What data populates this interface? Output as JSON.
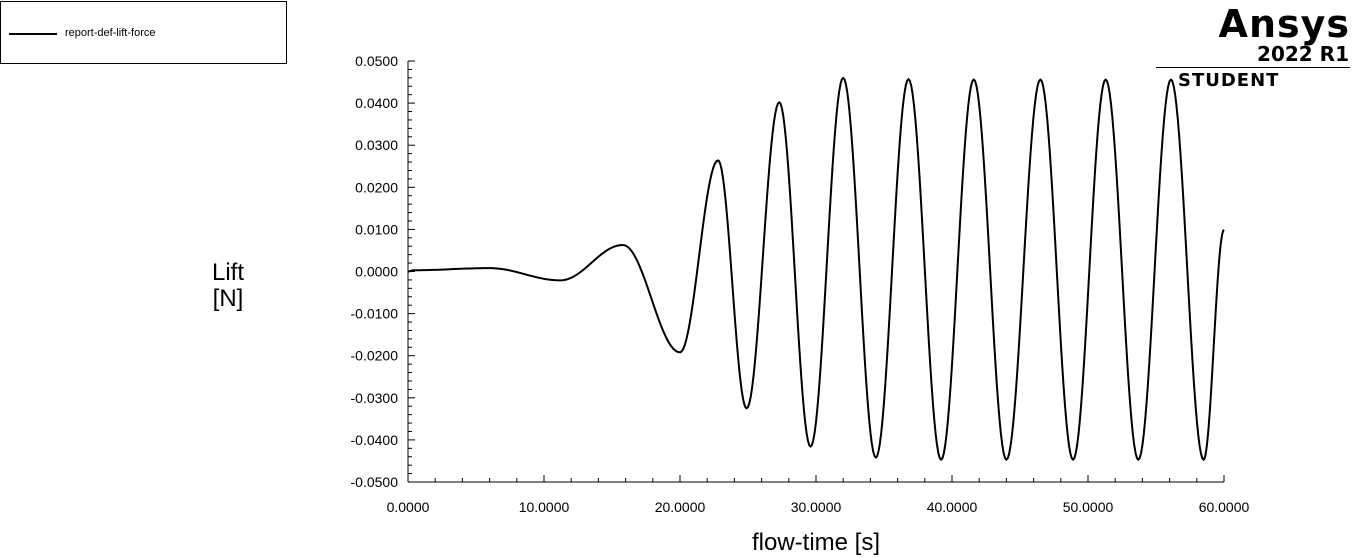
{
  "legend": {
    "series_label": "report-def-lift-force"
  },
  "logo": {
    "name": "Ansys",
    "version": "2022 R1",
    "edition": "STUDENT"
  },
  "colors": {
    "line": "#000000",
    "background": "#ffffff"
  },
  "chart_data": {
    "type": "line",
    "title": "",
    "xlabel": "flow-time [s]",
    "ylabel_lines": [
      "Lift",
      "[N]"
    ],
    "xlim": [
      0,
      60
    ],
    "ylim": [
      -0.05,
      0.05
    ],
    "x_ticks": [
      0,
      10,
      20,
      30,
      40,
      50,
      60
    ],
    "x_tick_labels": [
      "0.0000",
      "10.0000",
      "20.0000",
      "30.0000",
      "40.0000",
      "50.0000",
      "60.0000"
    ],
    "y_ticks": [
      0.05,
      0.04,
      0.03,
      0.02,
      0.01,
      0,
      -0.01,
      -0.02,
      -0.03,
      -0.04,
      -0.05
    ],
    "y_tick_labels": [
      "0.0500",
      "0.0400",
      "0.0300",
      "0.0200",
      "0.0100",
      "0.0000",
      "-0.0100",
      "-0.0200",
      "-0.0300",
      "-0.0400",
      "-0.0500"
    ],
    "grid": false,
    "legend_position": "top-left",
    "series": [
      {
        "name": "report-def-lift-force",
        "extrema": [
          [
            0.0,
            0.0
          ],
          [
            0.4,
            0.0003
          ],
          [
            6.0,
            0.0008
          ],
          [
            11.2,
            -0.0021
          ],
          [
            15.8,
            0.0063
          ],
          [
            20.0,
            -0.0192
          ],
          [
            22.8,
            0.0264
          ],
          [
            24.9,
            -0.0325
          ],
          [
            27.3,
            0.0402
          ],
          [
            29.6,
            -0.0416
          ],
          [
            32.0,
            0.046
          ],
          [
            34.4,
            -0.0442
          ],
          [
            36.8,
            0.0457
          ],
          [
            39.2,
            -0.0447
          ],
          [
            41.6,
            0.0456
          ],
          [
            44.0,
            -0.0447
          ],
          [
            46.5,
            0.0456
          ],
          [
            48.9,
            -0.0447
          ],
          [
            51.3,
            0.0456
          ],
          [
            53.7,
            -0.0447
          ],
          [
            56.1,
            0.0456
          ],
          [
            58.5,
            -0.0447
          ],
          [
            60.0,
            0.0099
          ]
        ]
      }
    ]
  }
}
